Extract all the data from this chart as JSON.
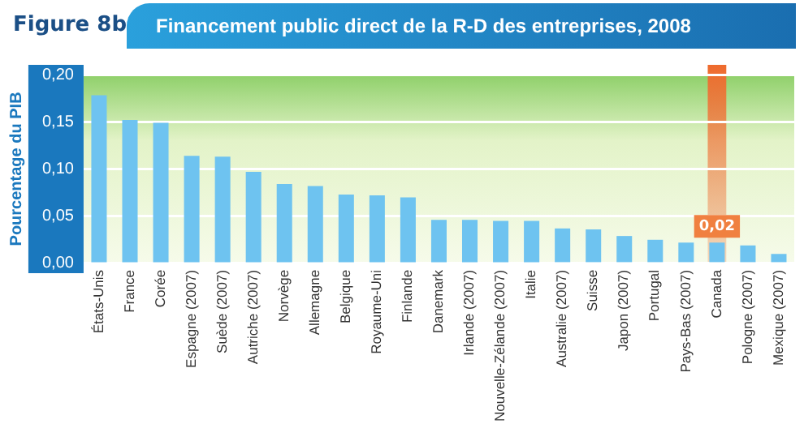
{
  "chart_data": {
    "type": "bar",
    "title": "Financement public direct de la R-D des entreprises, 2008",
    "ylabel": "Pourcentage du PIB",
    "annotations": [
      "Figure 8b"
    ],
    "categories": [
      "États-Unis",
      "France",
      "Corée",
      "Espagne (2007)",
      "Suède (2007)",
      "Autriche (2007)",
      "Norvège",
      "Allemagne",
      "Belgique",
      "Royaume-Uni",
      "Finlande",
      "Danemark",
      "Irlande (2007)",
      "Nouvelle-Zélande (2007)",
      "Italie",
      "Australie (2007)",
      "Suisse",
      "Japon (2007)",
      "Portugal",
      "Pays-Bas (2007)",
      "Canada",
      "Pologne (2007)",
      "Mexique (2007)"
    ],
    "values": [
      0.178,
      0.152,
      0.149,
      0.114,
      0.113,
      0.097,
      0.084,
      0.082,
      0.073,
      0.072,
      0.07,
      0.046,
      0.046,
      0.045,
      0.045,
      0.037,
      0.036,
      0.029,
      0.025,
      0.022,
      0.022,
      0.019,
      0.01
    ],
    "value_labels": [
      null,
      null,
      null,
      null,
      null,
      null,
      null,
      null,
      null,
      null,
      null,
      null,
      null,
      null,
      null,
      null,
      null,
      null,
      null,
      null,
      "0,02",
      null,
      null
    ],
    "color": "#6ec3f0",
    "ylim": [
      0,
      0.2
    ],
    "yticks": [
      {
        "value": 0,
        "label": "0,00"
      },
      {
        "value": 0.05,
        "label": "0,05"
      },
      {
        "value": 0.1,
        "label": "0,10"
      },
      {
        "value": 0.15,
        "label": "0,15"
      },
      {
        "value": 0.2,
        "label": "0,20"
      }
    ],
    "bands": [
      {
        "axis": "x",
        "from": "Canada",
        "to": "Canada",
        "color": "#ee6a2c"
      }
    ],
    "grid": "y",
    "legend": false
  }
}
